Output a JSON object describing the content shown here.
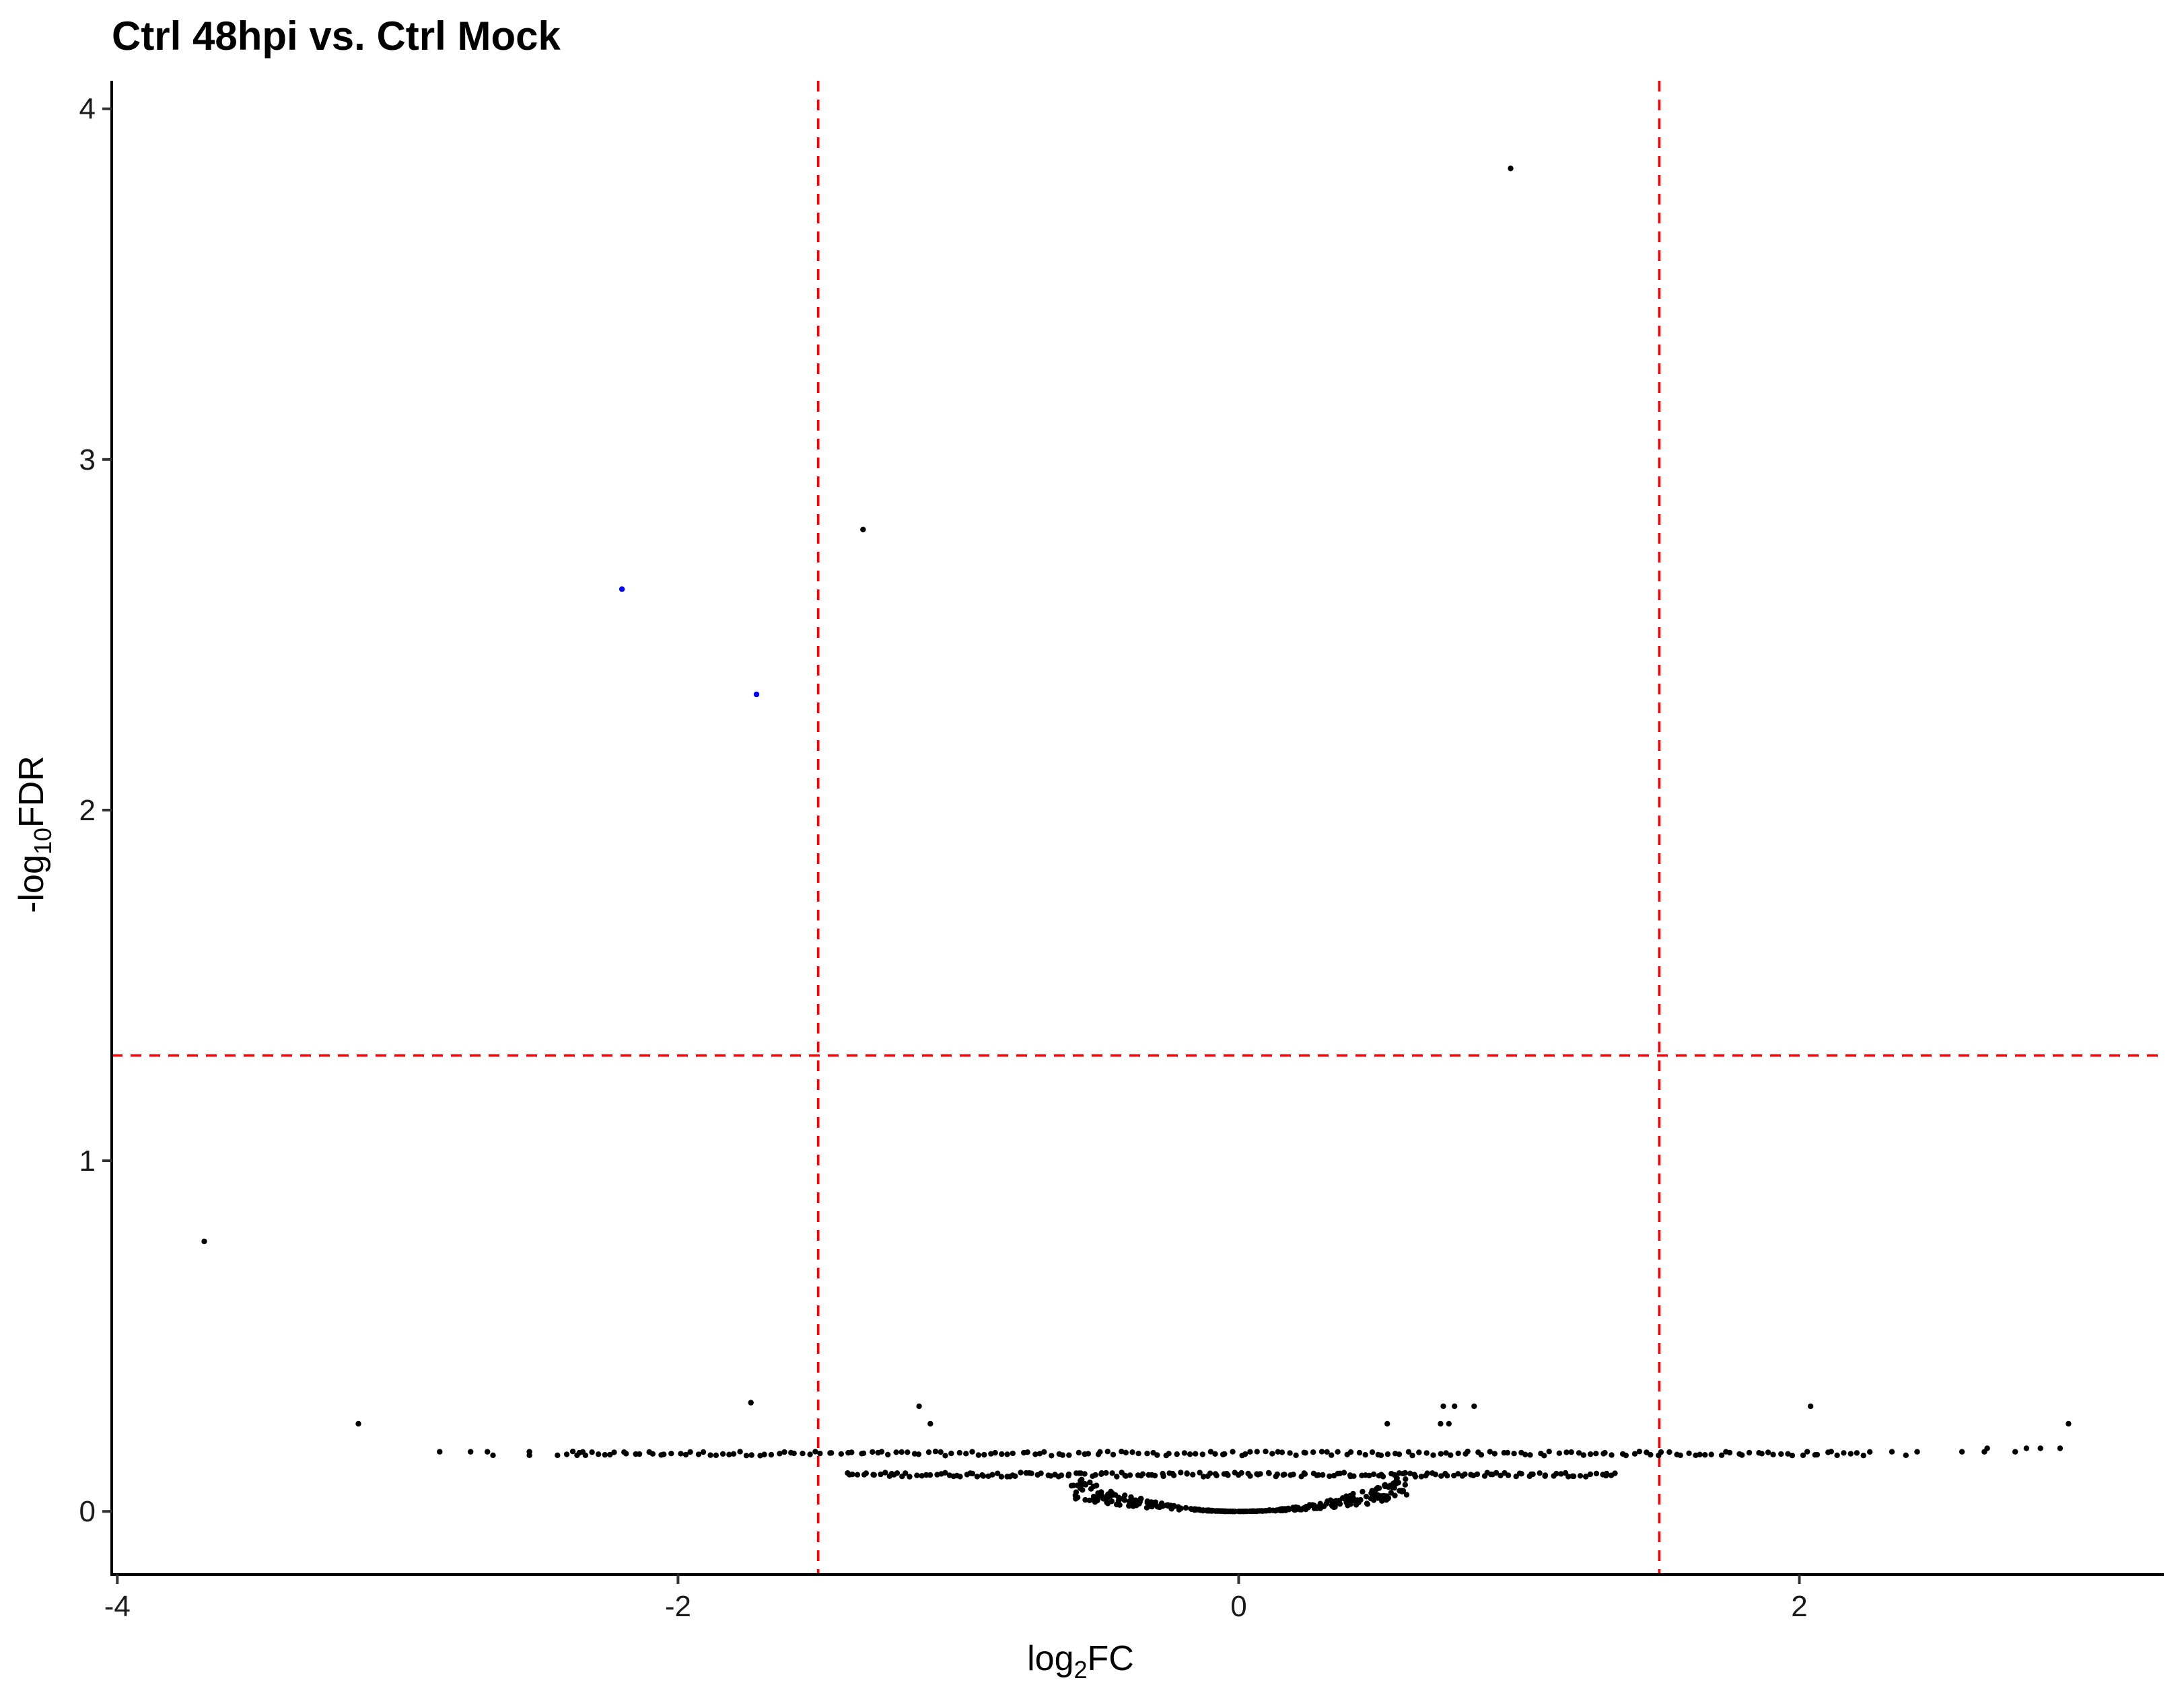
{
  "chart_data": {
    "type": "scatter",
    "title": "Ctrl 48hpi vs. Ctrl Mock",
    "xlabel": {
      "prefix": "log",
      "sub": "2",
      "suffix": "FC"
    },
    "ylabel": {
      "prefix": "-log",
      "sub": "10",
      "suffix": "FDR"
    },
    "xlim": [
      -4.02,
      3.3
    ],
    "ylim": [
      -0.18,
      4.08
    ],
    "xticks": [
      -4,
      -2,
      0,
      2
    ],
    "xtick_labels": [
      "-4",
      "-2",
      "0",
      "2"
    ],
    "yticks": [
      0,
      1,
      2,
      3,
      4
    ],
    "ytick_labels": [
      "0",
      "1",
      "2",
      "3",
      "4"
    ],
    "grid": false,
    "legend": "none",
    "thresholds": {
      "x": [
        -1.5,
        1.5
      ],
      "y": [
        1.3
      ]
    },
    "colors": {
      "default": "#000000",
      "highlight": "#0000ff",
      "threshold": "#ff0000"
    },
    "highlighted_points": [
      [
        -2.2,
        2.63
      ],
      [
        -1.72,
        2.33
      ]
    ],
    "points": [
      [
        0.97,
        3.83
      ],
      [
        -1.34,
        2.8
      ],
      [
        -3.69,
        0.77
      ],
      [
        -3.14,
        0.25
      ],
      [
        -1.74,
        0.31
      ],
      [
        -1.14,
        0.3
      ],
      [
        -1.1,
        0.25
      ],
      [
        2.04,
        0.3
      ],
      [
        2.96,
        0.25
      ],
      [
        0.73,
        0.3
      ],
      [
        0.77,
        0.3
      ],
      [
        0.84,
        0.3
      ],
      [
        0.53,
        0.25
      ],
      [
        0.72,
        0.25
      ],
      [
        0.75,
        0.25
      ],
      [
        -2.85,
        0.17
      ],
      [
        -2.74,
        0.17
      ],
      [
        -2.68,
        0.17
      ],
      [
        -2.66,
        0.16
      ],
      [
        -2.53,
        0.17
      ],
      [
        -2.53,
        0.16
      ],
      [
        -2.43,
        0.16
      ],
      [
        -2.36,
        0.16
      ],
      [
        -2.33,
        0.16
      ],
      [
        2.33,
        0.17
      ],
      [
        2.38,
        0.16
      ],
      [
        2.42,
        0.17
      ],
      [
        2.58,
        0.17
      ],
      [
        2.66,
        0.17
      ],
      [
        2.67,
        0.18
      ],
      [
        2.77,
        0.17
      ],
      [
        2.81,
        0.18
      ],
      [
        2.86,
        0.18
      ],
      [
        2.93,
        0.18
      ]
    ],
    "dense_bands": [
      {
        "y": 0.165,
        "x_from": -2.4,
        "x_to": 2.25,
        "n": 210,
        "y_jitter": 0.006
      },
      {
        "y": 0.105,
        "x_from": -1.4,
        "x_to": 1.35,
        "n": 190,
        "y_jitter": 0.006
      }
    ],
    "valley": {
      "x_from": -0.6,
      "x_to": 0.6,
      "n": 320,
      "y_max": 0.1
    }
  }
}
